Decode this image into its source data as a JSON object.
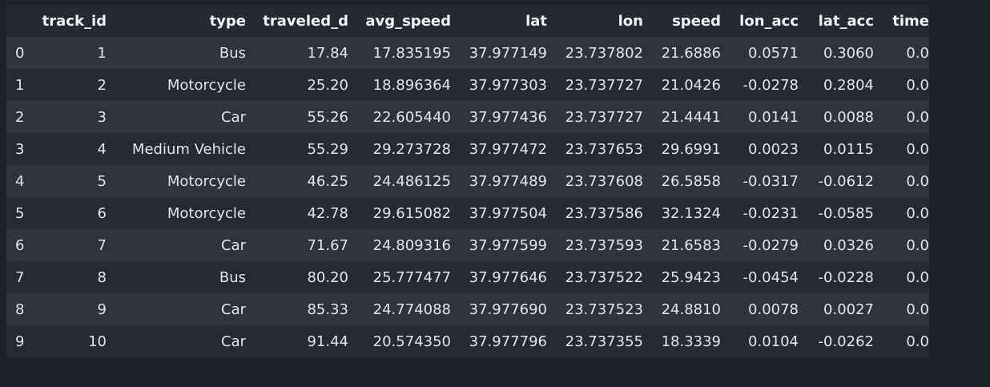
{
  "table": {
    "index_header": "",
    "columns": [
      "track_id",
      "type",
      "traveled_d",
      "avg_speed",
      "lat",
      "lon",
      "speed",
      "lon_acc",
      "lat_acc",
      "time"
    ],
    "rows": [
      {
        "index": "0",
        "cells": [
          "1",
          "Bus",
          "17.84",
          "17.835195",
          "37.977149",
          "23.737802",
          "21.6886",
          "0.0571",
          "0.3060",
          "0.0"
        ]
      },
      {
        "index": "1",
        "cells": [
          "2",
          "Motorcycle",
          "25.20",
          "18.896364",
          "37.977303",
          "23.737727",
          "21.0426",
          "-0.0278",
          "0.2804",
          "0.0"
        ]
      },
      {
        "index": "2",
        "cells": [
          "3",
          "Car",
          "55.26",
          "22.605440",
          "37.977436",
          "23.737727",
          "21.4441",
          "0.0141",
          "0.0088",
          "0.0"
        ]
      },
      {
        "index": "3",
        "cells": [
          "4",
          "Medium Vehicle",
          "55.29",
          "29.273728",
          "37.977472",
          "23.737653",
          "29.6991",
          "0.0023",
          "0.0115",
          "0.0"
        ]
      },
      {
        "index": "4",
        "cells": [
          "5",
          "Motorcycle",
          "46.25",
          "24.486125",
          "37.977489",
          "23.737608",
          "26.5858",
          "-0.0317",
          "-0.0612",
          "0.0"
        ]
      },
      {
        "index": "5",
        "cells": [
          "6",
          "Motorcycle",
          "42.78",
          "29.615082",
          "37.977504",
          "23.737586",
          "32.1324",
          "-0.0231",
          "-0.0585",
          "0.0"
        ]
      },
      {
        "index": "6",
        "cells": [
          "7",
          "Car",
          "71.67",
          "24.809316",
          "37.977599",
          "23.737593",
          "21.6583",
          "-0.0279",
          "0.0326",
          "0.0"
        ]
      },
      {
        "index": "7",
        "cells": [
          "8",
          "Bus",
          "80.20",
          "25.777477",
          "37.977646",
          "23.737522",
          "25.9423",
          "-0.0454",
          "-0.0228",
          "0.0"
        ]
      },
      {
        "index": "8",
        "cells": [
          "9",
          "Car",
          "85.33",
          "24.774088",
          "37.977690",
          "23.737523",
          "24.8810",
          "0.0078",
          "0.0027",
          "0.0"
        ]
      },
      {
        "index": "9",
        "cells": [
          "10",
          "Car",
          "91.44",
          "20.574350",
          "37.977796",
          "23.737355",
          "18.3339",
          "0.0104",
          "-0.0262",
          "0.0"
        ]
      }
    ]
  },
  "colors": {
    "background": "#1f2129",
    "row_even": "#30323d",
    "row_odd": "#272933",
    "text": "#e3e5ea"
  }
}
